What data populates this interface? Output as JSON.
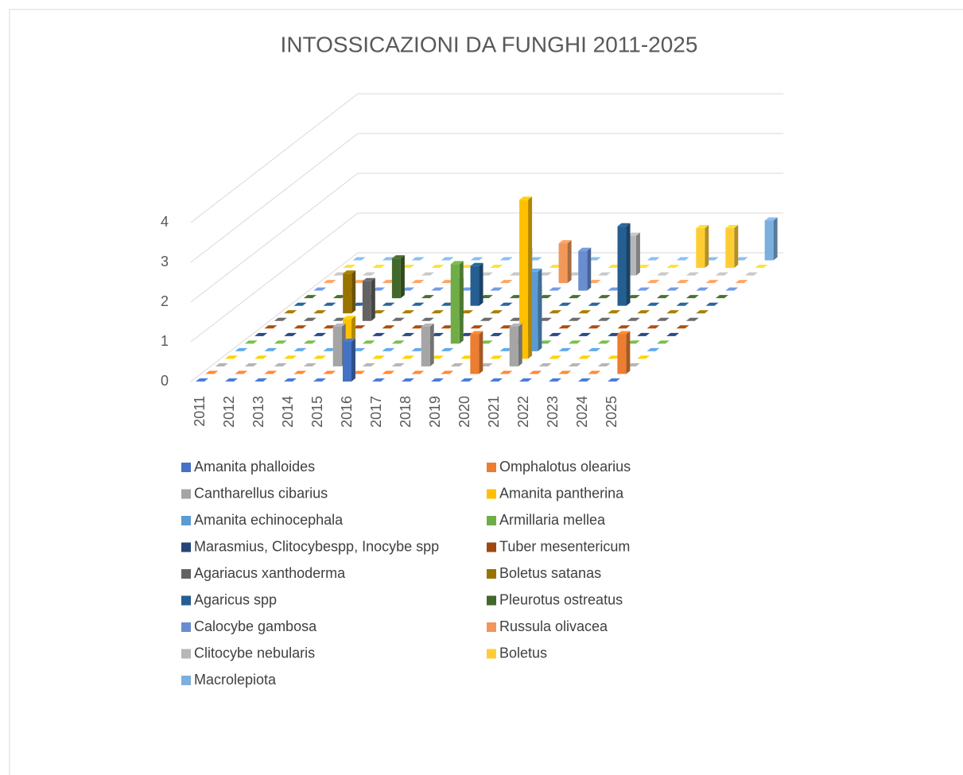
{
  "chart_data": {
    "type": "bar3d",
    "title": "INTOSSICAZIONI DA FUNGHI 2011-2025",
    "categories": [
      "2011",
      "2012",
      "2013",
      "2014",
      "2015",
      "2016",
      "2017",
      "2018",
      "2019",
      "2020",
      "2021",
      "2022",
      "2023",
      "2024",
      "2025"
    ],
    "ylim": [
      0,
      4
    ],
    "yticks": [
      0,
      1,
      2,
      3,
      4
    ],
    "grid": true,
    "series": [
      {
        "name": "Amanita phalloides",
        "color": "#4472c4",
        "values": [
          0,
          0,
          0,
          0,
          0,
          1,
          0,
          0,
          0,
          0,
          0,
          0,
          0,
          0,
          0
        ]
      },
      {
        "name": "Omphalotus olearius",
        "color": "#ed7d31",
        "values": [
          0,
          0,
          0,
          0,
          0,
          0,
          0,
          0,
          0,
          1,
          0,
          0,
          0,
          0,
          1
        ]
      },
      {
        "name": "Cantharellus cibarius",
        "color": "#a5a5a5",
        "values": [
          0,
          0,
          0,
          0,
          1,
          0,
          0,
          1,
          0,
          0,
          1,
          0,
          0,
          0,
          0
        ]
      },
      {
        "name": "Amanita pantherina",
        "color": "#ffc000",
        "values": [
          0,
          0,
          0,
          0,
          1,
          0,
          0,
          0,
          0,
          0,
          4,
          0,
          0,
          0,
          0
        ]
      },
      {
        "name": "Amanita echinocephala",
        "color": "#5b9bd5",
        "values": [
          0,
          0,
          0,
          0,
          0,
          0,
          0,
          0,
          0,
          0,
          2,
          0,
          0,
          0,
          0
        ]
      },
      {
        "name": "Armillaria mellea",
        "color": "#70ad47",
        "values": [
          0,
          0,
          0,
          0,
          0,
          0,
          0,
          2,
          0,
          0,
          0,
          0,
          0,
          0,
          0
        ]
      },
      {
        "name": "Marasmius, Clitocybespp, Inocybe spp",
        "color": "#264478",
        "values": [
          0,
          0,
          0,
          0,
          0,
          0,
          0,
          0,
          0,
          1,
          0,
          0,
          0,
          0,
          0
        ]
      },
      {
        "name": "Tuber mesentericum",
        "color": "#9e480e",
        "values": [
          0,
          0,
          0,
          0,
          0,
          0,
          0,
          0,
          0,
          1,
          0,
          0,
          0,
          0,
          0
        ]
      },
      {
        "name": "Agariacus xanthoderma",
        "color": "#636363",
        "values": [
          0,
          0,
          0,
          1,
          0,
          0,
          1,
          0,
          0,
          0,
          0,
          0,
          0,
          0,
          0
        ]
      },
      {
        "name": "Boletus satanas",
        "color": "#997300",
        "values": [
          0,
          0,
          1,
          0,
          0,
          0,
          0,
          0,
          0,
          0,
          0,
          0,
          0,
          0,
          0
        ]
      },
      {
        "name": "Agaricus spp",
        "color": "#255e91",
        "values": [
          0,
          0,
          0,
          0,
          0,
          0,
          1,
          0,
          0,
          0,
          0,
          2,
          0,
          0,
          0
        ]
      },
      {
        "name": "Pleurotus ostreatus",
        "color": "#43682b",
        "values": [
          0,
          0,
          0,
          1,
          0,
          0,
          0,
          0,
          0,
          0,
          0,
          0,
          0,
          0,
          0
        ]
      },
      {
        "name": "Calocybe gambosa",
        "color": "#698ed0",
        "values": [
          0,
          0,
          0,
          0,
          0,
          0,
          0,
          1,
          0,
          1,
          0,
          0,
          0,
          0,
          0
        ]
      },
      {
        "name": "Russula olivacea",
        "color": "#f1975a",
        "values": [
          0,
          0,
          0,
          0,
          0,
          0,
          0,
          0,
          1,
          0,
          0,
          0,
          0,
          0,
          0
        ]
      },
      {
        "name": "Clitocybe nebularis",
        "color": "#b7b7b7",
        "values": [
          0,
          0,
          0,
          0,
          0,
          0,
          0,
          0,
          0,
          0,
          1,
          0,
          0,
          0,
          0
        ]
      },
      {
        "name": "Boletus",
        "color": "#ffcd33",
        "values": [
          0,
          0,
          0,
          0,
          0,
          0,
          0,
          0,
          0,
          0,
          0,
          0,
          1,
          1,
          0
        ]
      },
      {
        "name": "Macrolepiota",
        "color": "#7cafdd",
        "values": [
          0,
          0,
          0,
          0,
          0,
          0,
          0,
          0,
          0,
          0,
          0,
          0,
          0,
          0,
          1
        ]
      }
    ]
  }
}
